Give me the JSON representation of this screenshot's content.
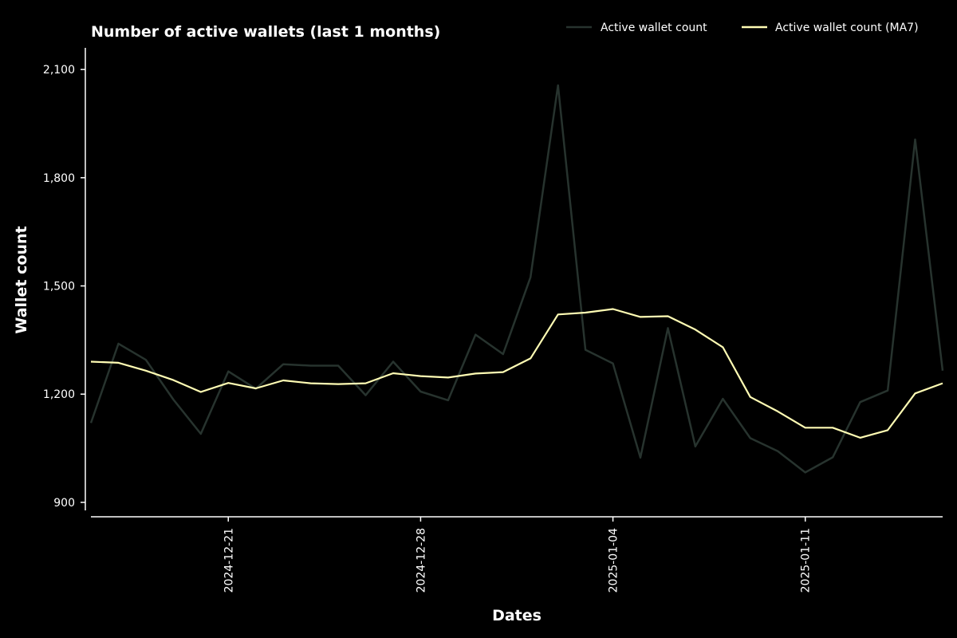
{
  "chart_data": {
    "type": "line",
    "title": "Number of active wallets (last 1 months)",
    "xlabel": "Dates",
    "ylabel": "Wallet count",
    "x_start": "2024-12-16",
    "x": [
      "2024-12-16",
      "2024-12-17",
      "2024-12-18",
      "2024-12-19",
      "2024-12-20",
      "2024-12-21",
      "2024-12-22",
      "2024-12-23",
      "2024-12-24",
      "2024-12-25",
      "2024-12-26",
      "2024-12-27",
      "2024-12-28",
      "2024-12-29",
      "2024-12-30",
      "2024-12-31",
      "2025-01-01",
      "2025-01-02",
      "2025-01-03",
      "2025-01-04",
      "2025-01-05",
      "2025-01-06",
      "2025-01-07",
      "2025-01-08",
      "2025-01-09",
      "2025-01-10",
      "2025-01-11",
      "2025-01-12",
      "2025-01-13",
      "2025-01-14",
      "2025-01-15",
      "2025-01-16"
    ],
    "xlim": [
      "2024-12-16",
      "2025-01-16"
    ],
    "x_ticks": [
      "2024-12-21",
      "2024-12-28",
      "2025-01-04",
      "2025-01-11"
    ],
    "ylim": [
      860,
      2160
    ],
    "y_ticks": [
      900,
      1200,
      1500,
      1800,
      2100
    ],
    "y_tick_labels": [
      "900",
      "1,200",
      "1,500",
      "1,800",
      "2,100"
    ],
    "grid": false,
    "legend_position": "top-right",
    "series": [
      {
        "name": "Active wallet count",
        "color": "#27332e",
        "values": [
          1120,
          1340,
          1295,
          1185,
          1090,
          1263,
          1215,
          1283,
          1279,
          1279,
          1197,
          1290,
          1207,
          1183,
          1365,
          1311,
          1524,
          2056,
          1323,
          1285,
          1024,
          1383,
          1055,
          1187,
          1078,
          1042,
          983,
          1025,
          1178,
          1210,
          1906,
          1265
        ]
      },
      {
        "name": "Active wallet count (MA7)",
        "color": "#fffcb4",
        "values": [
          1290,
          1287,
          1265,
          1239,
          1206,
          1231,
          1216,
          1238,
          1230,
          1228,
          1230,
          1258,
          1250,
          1246,
          1257,
          1261,
          1299,
          1421,
          1426,
          1436,
          1414,
          1416,
          1379,
          1330,
          1192,
          1152,
          1107,
          1107,
          1079,
          1100,
          1202,
          1230
        ]
      }
    ]
  }
}
